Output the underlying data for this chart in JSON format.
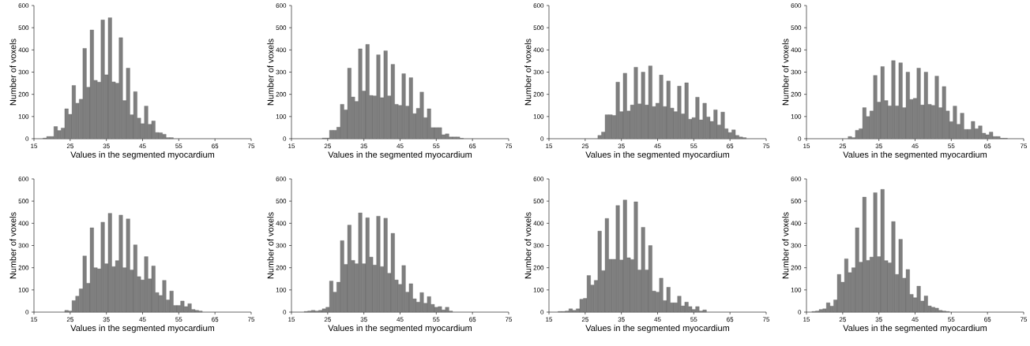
{
  "chart_data": [
    {
      "type": "histogram",
      "xlabel": "Values in the segmented myocardium",
      "ylabel": "Number of voxels",
      "color": "#7f7f7f",
      "xlim": [
        15,
        75
      ],
      "ylim": [
        0,
        600
      ],
      "xticks": [
        15,
        25,
        35,
        45,
        55,
        65,
        75
      ],
      "yticks": [
        0,
        100,
        200,
        300,
        400,
        500,
        600
      ],
      "bins": [
        17.5,
        18.5,
        19.5,
        20.5,
        21.5,
        22.5,
        23.5,
        24.5,
        25.5,
        26.5,
        27.5,
        28.5,
        29.5,
        30.5,
        31.5,
        32.5,
        33.5,
        34.5,
        35.5,
        36.5,
        37.5,
        38.5,
        39.5,
        40.5,
        41.5,
        42.5,
        43.5,
        44.5,
        45.5,
        46.5,
        47.5,
        48.5,
        49.5,
        50.5,
        51.5,
        52.5,
        53.5
      ],
      "values": [
        3,
        10,
        10,
        55,
        37,
        48,
        135,
        110,
        240,
        160,
        178,
        407,
        232,
        490,
        263,
        255,
        535,
        288,
        545,
        256,
        250,
        455,
        172,
        318,
        108,
        212,
        93,
        68,
        147,
        65,
        80,
        28,
        27,
        20,
        5,
        5
      ]
    },
    {
      "type": "histogram",
      "xlabel": "Values in the segmented myocardium",
      "ylabel": "Number of voxels",
      "color": "#7f7f7f",
      "xlim": [
        15,
        75
      ],
      "ylim": [
        0,
        600
      ],
      "xticks": [
        15,
        25,
        35,
        45,
        55,
        65,
        75
      ],
      "yticks": [
        0,
        100,
        200,
        300,
        400,
        500,
        600
      ],
      "bins": [
        23.5,
        24.5,
        25.5,
        26.5,
        27.5,
        28.5,
        29.5,
        30.5,
        31.5,
        32.5,
        33.5,
        34.5,
        35.5,
        36.5,
        37.5,
        38.5,
        39.5,
        40.5,
        41.5,
        42.5,
        43.5,
        44.5,
        45.5,
        46.5,
        47.5,
        48.5,
        49.5,
        50.5,
        51.5,
        52.5,
        53.5,
        54.5,
        55.5,
        56.5,
        57.5,
        58.5,
        59.5,
        60.5,
        61.5,
        62.5
      ],
      "values": [
        3,
        3,
        38,
        38,
        52,
        155,
        130,
        318,
        188,
        168,
        405,
        215,
        425,
        195,
        193,
        378,
        185,
        396,
        193,
        335,
        155,
        150,
        293,
        147,
        275,
        113,
        137,
        210,
        95,
        135,
        50,
        50,
        50,
        18,
        22,
        8,
        8,
        8,
        2
      ]
    },
    {
      "type": "histogram",
      "xlabel": "Values in the segmented myocardium",
      "ylabel": "Number of voxels",
      "color": "#7f7f7f",
      "xlim": [
        15,
        75
      ],
      "ylim": [
        0,
        600
      ],
      "xticks": [
        15,
        25,
        35,
        45,
        55,
        65,
        75
      ],
      "yticks": [
        0,
        100,
        200,
        300,
        400,
        500,
        600
      ],
      "bins": [
        28.5,
        29.5,
        30.5,
        31.5,
        32.5,
        33.5,
        34.5,
        35.5,
        36.5,
        37.5,
        38.5,
        39.5,
        40.5,
        41.5,
        42.5,
        43.5,
        44.5,
        45.5,
        46.5,
        47.5,
        48.5,
        49.5,
        50.5,
        51.5,
        52.5,
        53.5,
        54.5,
        55.5,
        56.5,
        57.5,
        58.5,
        59.5,
        60.5,
        61.5,
        62.5,
        63.5,
        64.5,
        65.5,
        66.5,
        67.5,
        68.5,
        69.5
      ],
      "values": [
        15,
        30,
        108,
        108,
        105,
        255,
        122,
        295,
        125,
        152,
        322,
        157,
        300,
        152,
        328,
        145,
        160,
        287,
        145,
        260,
        138,
        122,
        237,
        112,
        252,
        88,
        95,
        187,
        85,
        160,
        98,
        78,
        130,
        62,
        120,
        45,
        28,
        40,
        15,
        8,
        5
      ]
    },
    {
      "type": "histogram",
      "xlabel": "Values in the segmented myocardium",
      "ylabel": "Number of voxels",
      "color": "#7f7f7f",
      "xlim": [
        15,
        75
      ],
      "ylim": [
        0,
        600
      ],
      "xticks": [
        15,
        25,
        35,
        45,
        55,
        65,
        75
      ],
      "yticks": [
        0,
        100,
        200,
        300,
        400,
        500,
        600
      ],
      "bins": [
        26.5,
        27.5,
        28.5,
        29.5,
        30.5,
        31.5,
        32.5,
        33.5,
        34.5,
        35.5,
        36.5,
        37.5,
        38.5,
        39.5,
        40.5,
        41.5,
        42.5,
        43.5,
        44.5,
        45.5,
        46.5,
        47.5,
        48.5,
        49.5,
        50.5,
        51.5,
        52.5,
        53.5,
        54.5,
        55.5,
        56.5,
        57.5,
        58.5,
        59.5,
        60.5,
        61.5,
        62.5,
        63.5,
        64.5,
        65.5,
        66.5,
        67.5,
        68.5,
        69.5,
        70.5
      ],
      "values": [
        10,
        5,
        38,
        45,
        140,
        100,
        125,
        285,
        165,
        325,
        172,
        148,
        352,
        148,
        342,
        140,
        300,
        177,
        182,
        318,
        152,
        300,
        155,
        150,
        282,
        140,
        235,
        125,
        77,
        147,
        65,
        115,
        42,
        42,
        78,
        45,
        58,
        25,
        18,
        30,
        10,
        10,
        2,
        2
      ]
    },
    {
      "type": "histogram",
      "xlabel": "Values in the segmented myocardium",
      "ylabel": "Number of voxels",
      "color": "#7f7f7f",
      "xlim": [
        15,
        75
      ],
      "ylim": [
        0,
        600
      ],
      "xticks": [
        15,
        25,
        35,
        45,
        55,
        65,
        75
      ],
      "yticks": [
        0,
        100,
        200,
        300,
        400,
        500,
        600
      ],
      "bins": [
        23.5,
        24.5,
        25.5,
        26.5,
        27.5,
        28.5,
        29.5,
        30.5,
        31.5,
        32.5,
        33.5,
        34.5,
        35.5,
        36.5,
        37.5,
        38.5,
        39.5,
        40.5,
        41.5,
        42.5,
        43.5,
        44.5,
        45.5,
        46.5,
        47.5,
        48.5,
        49.5,
        50.5,
        51.5,
        52.5,
        53.5,
        54.5,
        55.5,
        56.5,
        57.5,
        58.5,
        59.5,
        60.5,
        61.5
      ],
      "values": [
        8,
        5,
        52,
        72,
        105,
        253,
        130,
        380,
        200,
        195,
        405,
        218,
        445,
        205,
        232,
        437,
        200,
        420,
        190,
        303,
        160,
        145,
        250,
        150,
        208,
        88,
        75,
        143,
        55,
        95,
        30,
        30,
        50,
        25,
        38,
        12,
        8,
        5
      ]
    },
    {
      "type": "histogram",
      "xlabel": "Values in the segmented myocardium",
      "ylabel": "Number of voxels",
      "color": "#7f7f7f",
      "xlim": [
        15,
        75
      ],
      "ylim": [
        0,
        600
      ],
      "xticks": [
        15,
        25,
        35,
        45,
        55,
        65,
        75
      ],
      "yticks": [
        0,
        100,
        200,
        300,
        400,
        500,
        600
      ],
      "bins": [
        18.5,
        19.5,
        20.5,
        21.5,
        22.5,
        23.5,
        24.5,
        25.5,
        26.5,
        27.5,
        28.5,
        29.5,
        30.5,
        31.5,
        32.5,
        33.5,
        34.5,
        35.5,
        36.5,
        37.5,
        38.5,
        39.5,
        40.5,
        41.5,
        42.5,
        43.5,
        44.5,
        45.5,
        46.5,
        47.5,
        48.5,
        49.5,
        50.5,
        51.5,
        52.5,
        53.5,
        54.5,
        55.5,
        56.5,
        57.5,
        58.5,
        59.5
      ],
      "values": [
        3,
        5,
        8,
        5,
        8,
        15,
        22,
        140,
        90,
        135,
        322,
        215,
        392,
        233,
        218,
        447,
        218,
        425,
        248,
        212,
        432,
        205,
        423,
        175,
        355,
        145,
        125,
        210,
        90,
        128,
        60,
        45,
        88,
        40,
        70,
        35,
        22,
        25,
        10,
        22,
        5
      ]
    },
    {
      "type": "histogram",
      "xlabel": "Values in the segmented myocardium",
      "ylabel": "Number of voxels",
      "color": "#7f7f7f",
      "xlim": [
        15,
        75
      ],
      "ylim": [
        0,
        600
      ],
      "xticks": [
        15,
        25,
        35,
        45,
        55,
        65,
        75
      ],
      "yticks": [
        0,
        100,
        200,
        300,
        400,
        500,
        600
      ],
      "bins": [
        17.5,
        18.5,
        19.5,
        20.5,
        21.5,
        22.5,
        23.5,
        24.5,
        25.5,
        26.5,
        27.5,
        28.5,
        29.5,
        30.5,
        31.5,
        32.5,
        33.5,
        34.5,
        35.5,
        36.5,
        37.5,
        38.5,
        39.5,
        40.5,
        41.5,
        42.5,
        43.5,
        44.5,
        45.5,
        46.5,
        47.5,
        48.5,
        49.5,
        50.5,
        51.5,
        52.5,
        53.5,
        54.5,
        55.5,
        56.5,
        57.5,
        58.5
      ],
      "values": [
        3,
        3,
        5,
        15,
        8,
        15,
        58,
        62,
        165,
        122,
        143,
        365,
        187,
        422,
        238,
        238,
        480,
        235,
        505,
        245,
        237,
        497,
        190,
        382,
        190,
        300,
        95,
        90,
        153,
        52,
        112,
        42,
        42,
        72,
        28,
        45,
        25,
        12,
        25,
        5,
        10
      ]
    },
    {
      "type": "histogram",
      "xlabel": "Values in the segmented myocardium",
      "ylabel": "Number of voxels",
      "color": "#7f7f7f",
      "xlim": [
        15,
        75
      ],
      "ylim": [
        0,
        600
      ],
      "xticks": [
        15,
        25,
        35,
        45,
        55,
        65,
        75
      ],
      "yticks": [
        0,
        100,
        200,
        300,
        400,
        500,
        600
      ],
      "bins": [
        16.5,
        17.5,
        18.5,
        19.5,
        20.5,
        21.5,
        22.5,
        23.5,
        24.5,
        25.5,
        26.5,
        27.5,
        28.5,
        29.5,
        30.5,
        31.5,
        32.5,
        33.5,
        34.5,
        35.5,
        36.5,
        37.5,
        38.5,
        39.5,
        40.5,
        41.5,
        42.5,
        43.5,
        44.5,
        45.5,
        46.5,
        47.5,
        48.5,
        49.5,
        50.5,
        51.5,
        52.5,
        53.5,
        54.5
      ],
      "values": [
        3,
        5,
        12,
        15,
        42,
        27,
        55,
        170,
        135,
        240,
        178,
        200,
        380,
        225,
        518,
        233,
        248,
        538,
        250,
        553,
        232,
        222,
        408,
        170,
        328,
        153,
        192,
        80,
        65,
        117,
        50,
        73,
        28,
        22,
        18,
        8,
        5,
        3
      ]
    }
  ]
}
